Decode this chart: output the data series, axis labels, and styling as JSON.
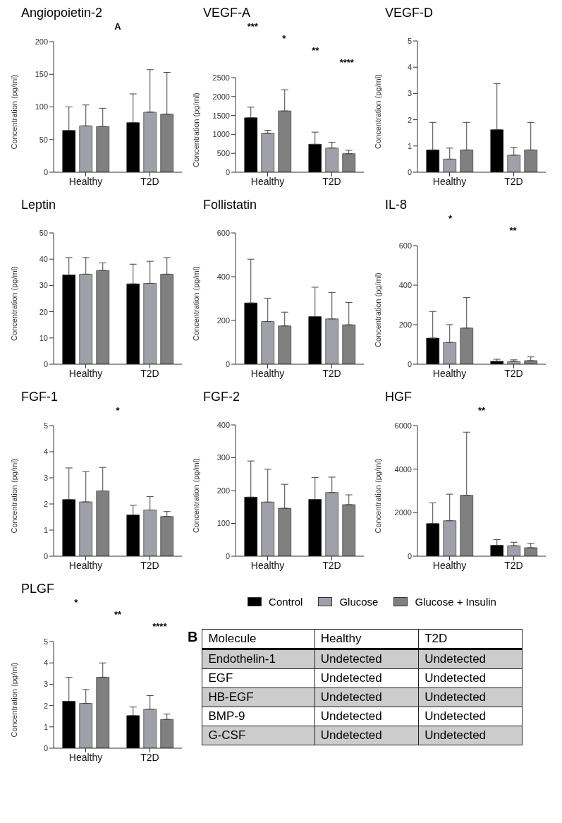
{
  "chart_data": [
    {
      "type": "bar",
      "title": "Angiopoietin-2",
      "ylabel": "Concentration (pg/ml)",
      "annotations": [
        "A"
      ],
      "categories": [
        "Healthy",
        "T2D"
      ],
      "ylim": [
        0,
        200
      ],
      "yticks": [
        0,
        50,
        100,
        150,
        200
      ],
      "series": [
        {
          "color": "#000000",
          "values": [
            64,
            76
          ],
          "errors": [
            [
              64,
              100
            ],
            [
              76,
              120
            ]
          ]
        },
        {
          "color": "#a0a0a8",
          "values": [
            71,
            92
          ],
          "errors": [
            [
              71,
              103
            ],
            [
              92,
              157
            ]
          ]
        },
        {
          "color": "#808080",
          "values": [
            70,
            89
          ],
          "errors": [
            [
              70,
              98
            ],
            [
              89,
              153
            ]
          ]
        }
      ]
    },
    {
      "type": "bar",
      "title": "VEGF-A",
      "ylabel": "Concentration (pg/ml)",
      "annotations": [
        "***",
        "*",
        "**",
        "****"
      ],
      "categories": [
        "Healthy",
        "T2D"
      ],
      "ylim": [
        0,
        2500
      ],
      "yticks": [
        0,
        500,
        1000,
        1500,
        2000,
        2500
      ],
      "series": [
        {
          "color": "#000000",
          "values": [
            1440,
            740
          ],
          "errors": [
            [
              1440,
              1720
            ],
            [
              740,
              1060
            ]
          ]
        },
        {
          "color": "#a0a0a8",
          "values": [
            1030,
            640
          ],
          "errors": [
            [
              1030,
              1110
            ],
            [
              640,
              790
            ]
          ]
        },
        {
          "color": "#808080",
          "values": [
            1620,
            490
          ],
          "errors": [
            [
              1620,
              2180
            ],
            [
              490,
              580
            ]
          ]
        }
      ]
    },
    {
      "type": "bar",
      "title": "VEGF-D",
      "ylabel": "Concentration (pg/ml)",
      "categories": [
        "Healthy",
        "T2D"
      ],
      "ylim": [
        0,
        5
      ],
      "yticks": [
        0,
        1,
        2,
        3,
        4,
        5
      ],
      "series": [
        {
          "color": "#000000",
          "values": [
            0.85,
            1.62
          ],
          "errors": [
            [
              0.85,
              1.9
            ],
            [
              1.62,
              3.38
            ]
          ]
        },
        {
          "color": "#a0a0a8",
          "values": [
            0.5,
            0.65
          ],
          "errors": [
            [
              0.5,
              0.92
            ],
            [
              0.65,
              0.95
            ]
          ]
        },
        {
          "color": "#808080",
          "values": [
            0.85,
            0.85
          ],
          "errors": [
            [
              0.85,
              1.9
            ],
            [
              0.85,
              1.9
            ]
          ]
        }
      ]
    },
    {
      "type": "bar",
      "title": "Leptin",
      "ylabel": "Concentration (pg/ml)",
      "categories": [
        "Healthy",
        "T2D"
      ],
      "ylim": [
        0,
        50
      ],
      "yticks": [
        0,
        10,
        20,
        30,
        40,
        50
      ],
      "series": [
        {
          "color": "#000000",
          "values": [
            34,
            30.6
          ],
          "errors": [
            [
              34,
              40.6
            ],
            [
              30.6,
              38.1
            ]
          ]
        },
        {
          "color": "#a0a0a8",
          "values": [
            34.3,
            30.8
          ],
          "errors": [
            [
              34.3,
              40.6
            ],
            [
              30.8,
              39.2
            ]
          ]
        },
        {
          "color": "#808080",
          "values": [
            35.7,
            34.3
          ],
          "errors": [
            [
              35.7,
              38.6
            ],
            [
              34.3,
              40.6
            ]
          ]
        }
      ]
    },
    {
      "type": "bar",
      "title": "Follistatin",
      "ylabel": "Concentration (pg/ml)",
      "categories": [
        "Healthy",
        "T2D"
      ],
      "ylim": [
        0,
        600
      ],
      "yticks": [
        0,
        200,
        400,
        600
      ],
      "series": [
        {
          "color": "#000000",
          "values": [
            280,
            218
          ],
          "errors": [
            [
              280,
              480
            ],
            [
              218,
              352
            ]
          ]
        },
        {
          "color": "#a0a0a8",
          "values": [
            195,
            207
          ],
          "errors": [
            [
              195,
              302
            ],
            [
              207,
              328
            ]
          ]
        },
        {
          "color": "#808080",
          "values": [
            175,
            180
          ],
          "errors": [
            [
              175,
              238
            ],
            [
              180,
              282
            ]
          ]
        }
      ]
    },
    {
      "type": "bar",
      "title": "IL-8",
      "ylabel": "Concentration (pg/ml)",
      "annotations": [
        "*",
        "**"
      ],
      "categories": [
        "Healthy",
        "T2D"
      ],
      "ylim": [
        0,
        600
      ],
      "yticks": [
        0,
        200,
        400,
        600
      ],
      "series": [
        {
          "color": "#000000",
          "values": [
            132,
            15
          ],
          "errors": [
            [
              132,
              267
            ],
            [
              15,
              25
            ]
          ]
        },
        {
          "color": "#a0a0a8",
          "values": [
            110,
            14
          ],
          "errors": [
            [
              110,
              200
            ],
            [
              14,
              22
            ]
          ]
        },
        {
          "color": "#808080",
          "values": [
            183,
            18
          ],
          "errors": [
            [
              183,
              337
            ],
            [
              18,
              37
            ]
          ]
        }
      ]
    },
    {
      "type": "bar",
      "title": "FGF-1",
      "ylabel": "Concentration (pg/ml)",
      "annotations": [
        "*"
      ],
      "categories": [
        "Healthy",
        "T2D"
      ],
      "ylim": [
        0,
        5
      ],
      "yticks": [
        0,
        1,
        2,
        3,
        4,
        5
      ],
      "series": [
        {
          "color": "#000000",
          "values": [
            2.17,
            1.58
          ],
          "errors": [
            [
              2.17,
              3.38
            ],
            [
              1.58,
              1.95
            ]
          ]
        },
        {
          "color": "#a0a0a8",
          "values": [
            2.08,
            1.77
          ],
          "errors": [
            [
              2.08,
              3.24
            ],
            [
              1.77,
              2.28
            ]
          ]
        },
        {
          "color": "#808080",
          "values": [
            2.5,
            1.52
          ],
          "errors": [
            [
              2.5,
              3.4
            ],
            [
              1.52,
              1.71
            ]
          ]
        }
      ]
    },
    {
      "type": "bar",
      "title": "FGF-2",
      "ylabel": "Concentration (pg/ml)",
      "categories": [
        "Healthy",
        "T2D"
      ],
      "ylim": [
        0,
        400
      ],
      "yticks": [
        0,
        100,
        200,
        300,
        400
      ],
      "series": [
        {
          "color": "#000000",
          "values": [
            180,
            173
          ],
          "errors": [
            [
              180,
              290
            ],
            [
              173,
              240
            ]
          ]
        },
        {
          "color": "#a0a0a8",
          "values": [
            165,
            194
          ],
          "errors": [
            [
              165,
              265
            ],
            [
              194,
              241
            ]
          ]
        },
        {
          "color": "#808080",
          "values": [
            146,
            157
          ],
          "errors": [
            [
              146,
              219
            ],
            [
              157,
              187
            ]
          ]
        }
      ]
    },
    {
      "type": "bar",
      "title": "HGF",
      "ylabel": "Concentration (pg/ml)",
      "annotations": [
        "**"
      ],
      "categories": [
        "Healthy",
        "T2D"
      ],
      "ylim": [
        0,
        6000
      ],
      "yticks": [
        0,
        2000,
        4000,
        6000
      ],
      "series": [
        {
          "color": "#000000",
          "values": [
            1500,
            500
          ],
          "errors": [
            [
              1500,
              2450
            ],
            [
              500,
              760
            ]
          ]
        },
        {
          "color": "#a0a0a8",
          "values": [
            1630,
            480
          ],
          "errors": [
            [
              1630,
              2850
            ],
            [
              480,
              640
            ]
          ]
        },
        {
          "color": "#808080",
          "values": [
            2800,
            390
          ],
          "errors": [
            [
              2800,
              5700
            ],
            [
              390,
              590
            ]
          ]
        }
      ]
    },
    {
      "type": "bar",
      "title": "PLGF",
      "ylabel": "Concentration (pg/ml)",
      "annotations": [
        "*",
        "**",
        "****"
      ],
      "categories": [
        "Healthy",
        "T2D"
      ],
      "ylim": [
        0,
        5
      ],
      "yticks": [
        0,
        1,
        2,
        3,
        4,
        5
      ],
      "legend": "right",
      "series": [
        {
          "name": "Control",
          "color": "#000000",
          "values": [
            2.2,
            1.53
          ],
          "errors": [
            [
              2.2,
              3.32
            ],
            [
              1.53,
              1.93
            ]
          ]
        },
        {
          "name": "Glucose",
          "color": "#a0a0a8",
          "values": [
            2.1,
            1.83
          ],
          "errors": [
            [
              2.1,
              2.75
            ],
            [
              1.83,
              2.47
            ]
          ]
        },
        {
          "name": "Glucose + Insulin",
          "color": "#808080",
          "values": [
            3.33,
            1.35
          ],
          "errors": [
            [
              3.33,
              4.0
            ],
            [
              1.35,
              1.6
            ]
          ]
        }
      ]
    },
    {
      "type": "other",
      "title": "B",
      "ylabel": "Molecule",
      "categories": [
        "Healthy",
        "T2D"
      ],
      "y_categories": [
        "Endothelin-1",
        "EGF",
        "HB-EGF",
        "BMP-9",
        "G-CSF"
      ],
      "cell_labels": [
        [
          "Undetected",
          "Undetected"
        ],
        [
          "Undetected",
          "Undetected"
        ],
        [
          "Undetected",
          "Undetected"
        ],
        [
          "Undetected",
          "Undetected"
        ],
        [
          "Undetected",
          "Undetected"
        ]
      ]
    }
  ]
}
